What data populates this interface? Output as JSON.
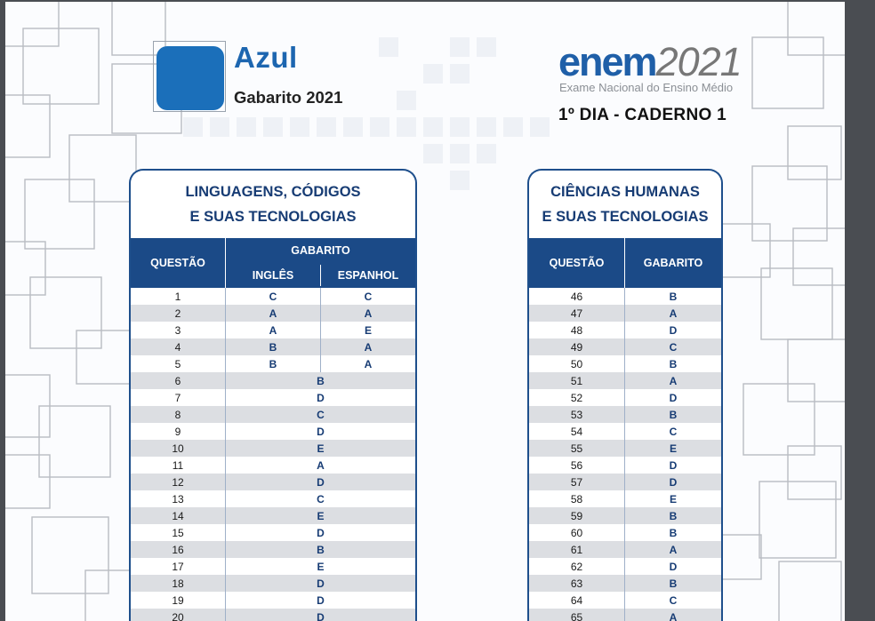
{
  "header": {
    "color_name": "Azul",
    "gabarito_label": "Gabarito 2021",
    "logo_word": "enem",
    "logo_year": "2021",
    "logo_subtitle": "Exame Nacional do Ensino Médio",
    "day_label": "1º DIA - CADERNO 1"
  },
  "colors": {
    "swatch": "#1b6fba",
    "header_bg": "#1b4a87",
    "title_text": "#173c74"
  },
  "linguagens": {
    "title_line1": "LINGUAGENS, CÓDIGOS",
    "title_line2": "E SUAS TECNOLOGIAS",
    "col_questao": "QUESTÃO",
    "col_gabarito": "GABARITO",
    "col_ingles": "INGLÊS",
    "col_espanhol": "ESPANHOL",
    "language_rows": [
      {
        "q": "1",
        "ingles": "C",
        "espanhol": "C"
      },
      {
        "q": "2",
        "ingles": "A",
        "espanhol": "A"
      },
      {
        "q": "3",
        "ingles": "A",
        "espanhol": "E"
      },
      {
        "q": "4",
        "ingles": "B",
        "espanhol": "A"
      },
      {
        "q": "5",
        "ingles": "B",
        "espanhol": "A"
      }
    ],
    "rows": [
      {
        "q": "6",
        "a": "B"
      },
      {
        "q": "7",
        "a": "D"
      },
      {
        "q": "8",
        "a": "C"
      },
      {
        "q": "9",
        "a": "D"
      },
      {
        "q": "10",
        "a": "E"
      },
      {
        "q": "11",
        "a": "A"
      },
      {
        "q": "12",
        "a": "D"
      },
      {
        "q": "13",
        "a": "C"
      },
      {
        "q": "14",
        "a": "E"
      },
      {
        "q": "15",
        "a": "D"
      },
      {
        "q": "16",
        "a": "B"
      },
      {
        "q": "17",
        "a": "E"
      },
      {
        "q": "18",
        "a": "D"
      },
      {
        "q": "19",
        "a": "D"
      },
      {
        "q": "20",
        "a": "D"
      }
    ]
  },
  "humanas": {
    "title_line1": "CIÊNCIAS HUMANAS",
    "title_line2": "E SUAS TECNOLOGIAS",
    "col_questao": "QUESTÃO",
    "col_gabarito": "GABARITO",
    "rows": [
      {
        "q": "46",
        "a": "B"
      },
      {
        "q": "47",
        "a": "A"
      },
      {
        "q": "48",
        "a": "D"
      },
      {
        "q": "49",
        "a": "C"
      },
      {
        "q": "50",
        "a": "B"
      },
      {
        "q": "51",
        "a": "A"
      },
      {
        "q": "52",
        "a": "D"
      },
      {
        "q": "53",
        "a": "B"
      },
      {
        "q": "54",
        "a": "C"
      },
      {
        "q": "55",
        "a": "E"
      },
      {
        "q": "56",
        "a": "D"
      },
      {
        "q": "57",
        "a": "D"
      },
      {
        "q": "58",
        "a": "E"
      },
      {
        "q": "59",
        "a": "B"
      },
      {
        "q": "60",
        "a": "B"
      },
      {
        "q": "61",
        "a": "A"
      },
      {
        "q": "62",
        "a": "D"
      },
      {
        "q": "63",
        "a": "B"
      },
      {
        "q": "64",
        "a": "C"
      },
      {
        "q": "65",
        "a": "A"
      }
    ]
  }
}
